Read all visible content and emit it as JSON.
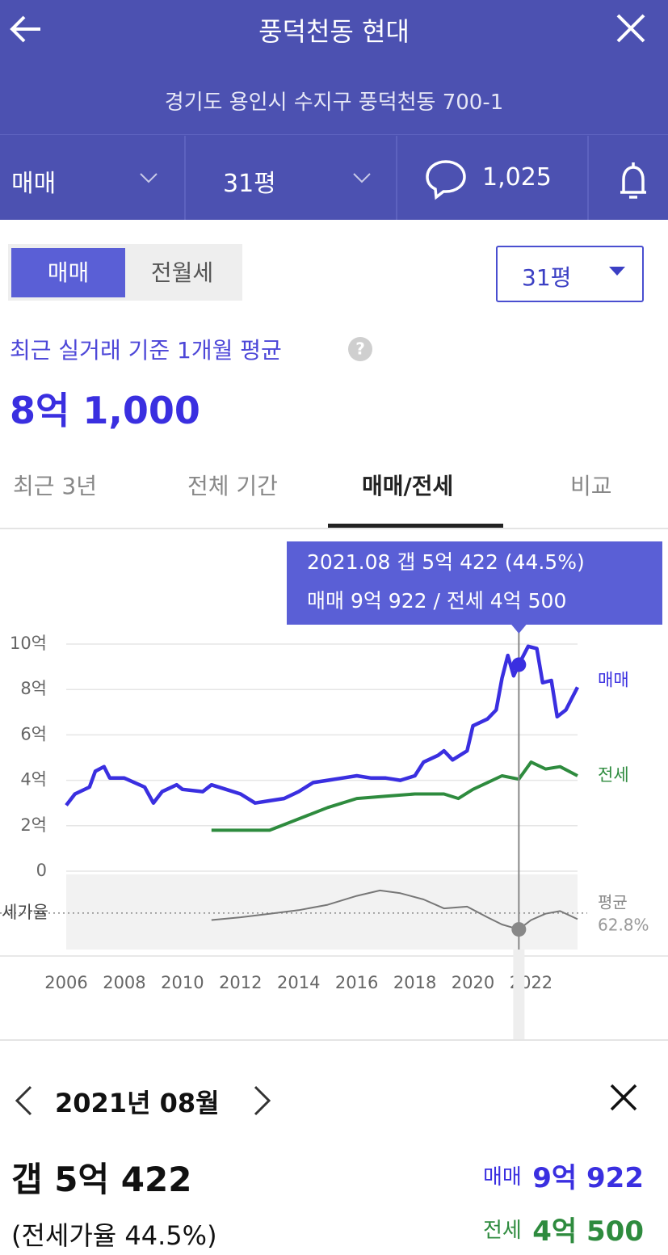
{
  "header": {
    "title": "풍덕천동 현대",
    "address": "경기도 용인시 수지구 풍덕천동 700-1"
  },
  "toolbar": {
    "trade_type": "매매",
    "size": "31평",
    "comments": "1,025"
  },
  "toggle": [
    "매매",
    "전월세"
  ],
  "size_select": "31평",
  "summary": {
    "label": "최근 실거래 기준 1개월 평균",
    "price": "8억 1,000"
  },
  "tabs": [
    "최근 3년",
    "전체 기간",
    "매매/전세",
    "비교"
  ],
  "chart_data": {
    "type": "line",
    "tooltip": [
      "2021.08  갭 5억 422 (44.5%)",
      "매매 9억 922 / 전세 4억 500"
    ],
    "xlim": [
      2006,
      2023.6
    ],
    "xticks": [
      2006,
      2008,
      2010,
      2012,
      2014,
      2016,
      2018,
      2020,
      2022
    ],
    "ylim": [
      0,
      10
    ],
    "yticks": [
      0,
      {
        "value": 2,
        "label": "2억"
      },
      {
        "value": 4,
        "label": "4억"
      },
      {
        "value": 6,
        "label": "6억"
      },
      {
        "value": 8,
        "label": "8억"
      },
      {
        "value": 10,
        "label": "10억"
      }
    ],
    "grid": true,
    "series": [
      {
        "name": "매매",
        "color": "#3a2fe0",
        "x": [
          2006.0,
          2006.3,
          2006.8,
          2007.0,
          2007.3,
          2007.5,
          2008.0,
          2008.7,
          2009.0,
          2009.3,
          2009.8,
          2010.0,
          2010.7,
          2011.0,
          2011.5,
          2012.0,
          2012.5,
          2013.0,
          2013.5,
          2014.0,
          2014.5,
          2015.0,
          2015.5,
          2016.0,
          2016.5,
          2017.0,
          2017.5,
          2018.0,
          2018.3,
          2018.8,
          2019.0,
          2019.3,
          2019.8,
          2020.0,
          2020.5,
          2020.8,
          2021.0,
          2021.2,
          2021.4,
          2021.58,
          2021.9,
          2022.2,
          2022.4,
          2022.7,
          2022.9,
          2023.2,
          2023.4,
          2023.6
        ],
        "values": [
          2.9,
          3.4,
          3.7,
          4.4,
          4.6,
          4.1,
          4.1,
          3.7,
          3.0,
          3.5,
          3.8,
          3.6,
          3.5,
          3.8,
          3.6,
          3.4,
          3.0,
          3.1,
          3.2,
          3.5,
          3.9,
          4.0,
          4.1,
          4.2,
          4.1,
          4.1,
          4.0,
          4.2,
          4.8,
          5.1,
          5.3,
          4.9,
          5.3,
          6.4,
          6.7,
          7.1,
          8.5,
          9.5,
          8.6,
          9.1,
          9.9,
          9.8,
          8.3,
          8.4,
          6.8,
          7.1,
          7.6,
          8.1
        ]
      },
      {
        "name": "전세",
        "color": "#2e8b3e",
        "x": [
          2011.0,
          2012.0,
          2013.0,
          2014.0,
          2015.0,
          2016.0,
          2017.0,
          2018.0,
          2019.0,
          2019.5,
          2020.0,
          2020.5,
          2021.0,
          2021.58,
          2022.0,
          2022.5,
          2023.0,
          2023.6
        ],
        "values": [
          1.8,
          1.8,
          1.8,
          2.3,
          2.8,
          3.2,
          3.3,
          3.4,
          3.4,
          3.2,
          3.6,
          3.9,
          4.2,
          4.05,
          4.8,
          4.5,
          4.6,
          4.2
        ]
      }
    ],
    "ratio": {
      "name": "세가율",
      "color": "#777777",
      "lim": [
        22,
        106
      ],
      "x": [
        2011.0,
        2012.0,
        2013.0,
        2014.0,
        2015.0,
        2016.0,
        2016.8,
        2017.5,
        2018.3,
        2019.0,
        2019.8,
        2020.5,
        2021.0,
        2021.58,
        2022.0,
        2022.5,
        2023.0,
        2023.6
      ],
      "values": [
        55,
        58,
        62,
        66,
        72,
        82,
        88,
        85,
        78,
        68,
        70,
        58,
        50,
        44.5,
        55,
        62,
        65,
        56
      ],
      "average_label": "평균",
      "average": {
        "value": 62.8,
        "label": "62.8%"
      }
    },
    "highlight": {
      "x": 2021.58,
      "sale": 9.0922,
      "ratio": 44.5
    }
  },
  "detail": {
    "month": "2021년 08월",
    "gap": "갭 5억 422",
    "ratio": "(전세가율 44.5%)",
    "sale_label": "매매",
    "sale": "9억 922",
    "jeonse_label": "전세",
    "jeonse": "4억 500"
  }
}
